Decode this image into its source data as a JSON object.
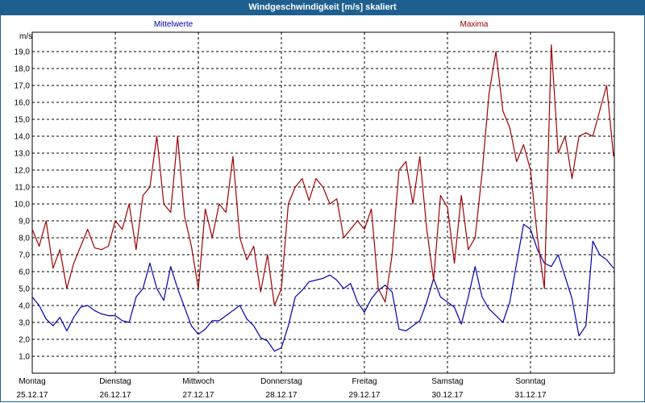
{
  "window": {
    "title": "Windgeschwindigkeit [m/s] skaliert"
  },
  "chart_data": {
    "type": "line",
    "title": "Windgeschwindigkeit [m/s] skaliert",
    "ylabel": "m/s",
    "ylim": [
      0,
      20
    ],
    "yticks": [
      "1,0",
      "2,0",
      "3,0",
      "4,0",
      "5,0",
      "6,0",
      "7,0",
      "8,0",
      "9,0",
      "10,0",
      "11,0",
      "12,0",
      "13,0",
      "14,0",
      "15,0",
      "16,0",
      "17,0",
      "18,0",
      "19,0"
    ],
    "grid": true,
    "days": [
      {
        "name": "Montag",
        "date": "25.12.17"
      },
      {
        "name": "Dienstag",
        "date": "26.12.17"
      },
      {
        "name": "Mittwoch",
        "date": "27.12.17"
      },
      {
        "name": "Donnerstag",
        "date": "28.12.17"
      },
      {
        "name": "Freitag",
        "date": "29.12.17"
      },
      {
        "name": "Samstag",
        "date": "30.12.17"
      },
      {
        "name": "Sonntag",
        "date": "31.12.17"
      }
    ],
    "x_unit": "hours since 25.12.17 00:00",
    "xlim": [
      0,
      168
    ],
    "series": [
      {
        "name": "Mittelwerte",
        "color": "#0000b0",
        "x": [
          0,
          2,
          4,
          6,
          8,
          10,
          12,
          14,
          16,
          18,
          20,
          22,
          24,
          26,
          28,
          30,
          32,
          34,
          36,
          38,
          40,
          42,
          44,
          46,
          48,
          50,
          52,
          54,
          56,
          58,
          60,
          62,
          64,
          66,
          68,
          70,
          72,
          74,
          76,
          78,
          80,
          82,
          84,
          86,
          88,
          90,
          92,
          94,
          96,
          98,
          100,
          102,
          104,
          106,
          108,
          110,
          112,
          114,
          116,
          118,
          120,
          122,
          124,
          126,
          128,
          130,
          132,
          134,
          136,
          138,
          140,
          142,
          144,
          146,
          148,
          150,
          152,
          154,
          156,
          158,
          160,
          162,
          164,
          166,
          168
        ],
        "values": [
          4.5,
          4.0,
          3.2,
          2.8,
          3.3,
          2.5,
          3.3,
          3.9,
          4.0,
          3.7,
          3.5,
          3.4,
          3.4,
          3.1,
          3.0,
          4.5,
          5.0,
          6.5,
          5.0,
          4.3,
          6.3,
          5.0,
          3.9,
          2.8,
          2.3,
          2.6,
          3.1,
          3.1,
          3.4,
          3.7,
          4.0,
          3.2,
          2.8,
          2.1,
          1.9,
          1.3,
          1.5,
          2.8,
          4.5,
          4.9,
          5.4,
          5.5,
          5.6,
          5.8,
          5.5,
          5.0,
          5.3,
          4.2,
          3.6,
          4.4,
          4.9,
          5.2,
          4.8,
          2.6,
          2.5,
          2.8,
          3.1,
          4.2,
          5.6,
          4.5,
          4.2,
          3.9,
          2.9,
          4.5,
          6.3,
          4.5,
          3.8,
          3.4,
          3.0,
          4.2,
          6.5,
          8.8,
          8.5,
          7.3,
          6.5,
          6.3,
          7.0,
          5.7,
          4.4,
          2.2,
          2.8,
          7.8,
          7.0,
          6.7,
          6.2
        ]
      },
      {
        "name": "Maxima",
        "color": "#a00000",
        "x": [
          0,
          2,
          4,
          6,
          8,
          10,
          12,
          14,
          16,
          18,
          20,
          22,
          24,
          26,
          28,
          30,
          32,
          34,
          36,
          38,
          40,
          42,
          44,
          46,
          48,
          50,
          52,
          54,
          56,
          58,
          60,
          62,
          64,
          66,
          68,
          70,
          72,
          74,
          76,
          78,
          80,
          82,
          84,
          86,
          88,
          90,
          92,
          94,
          96,
          98,
          100,
          102,
          104,
          106,
          108,
          110,
          112,
          114,
          116,
          118,
          120,
          122,
          124,
          126,
          128,
          130,
          132,
          134,
          136,
          138,
          140,
          142,
          144,
          146,
          148,
          150,
          152,
          154,
          156,
          158,
          160,
          162,
          164,
          166,
          168
        ],
        "values": [
          8.5,
          7.5,
          9.0,
          6.2,
          7.3,
          5.0,
          6.5,
          7.5,
          8.5,
          7.4,
          7.3,
          7.5,
          9.0,
          8.5,
          10.0,
          7.3,
          10.5,
          11.0,
          14.0,
          10.0,
          9.5,
          14.0,
          9.3,
          7.5,
          5.0,
          9.7,
          8.0,
          10.0,
          9.5,
          12.8,
          8.0,
          6.7,
          7.5,
          4.8,
          7.0,
          4.0,
          5.0,
          10.0,
          11.0,
          11.5,
          10.2,
          11.5,
          11.0,
          10.0,
          10.3,
          8.0,
          8.5,
          9.0,
          8.5,
          9.7,
          5.0,
          4.2,
          7.0,
          12.0,
          12.5,
          10.0,
          12.8,
          8.5,
          5.5,
          10.5,
          9.8,
          6.5,
          10.5,
          7.3,
          8.0,
          11.8,
          16.5,
          19.0,
          15.5,
          14.5,
          12.5,
          13.5,
          12.0,
          8.0,
          5.0,
          19.4,
          13.0,
          14.0,
          11.5,
          14.0,
          14.2,
          14.0,
          15.5,
          17.0,
          12.8
        ]
      }
    ]
  }
}
